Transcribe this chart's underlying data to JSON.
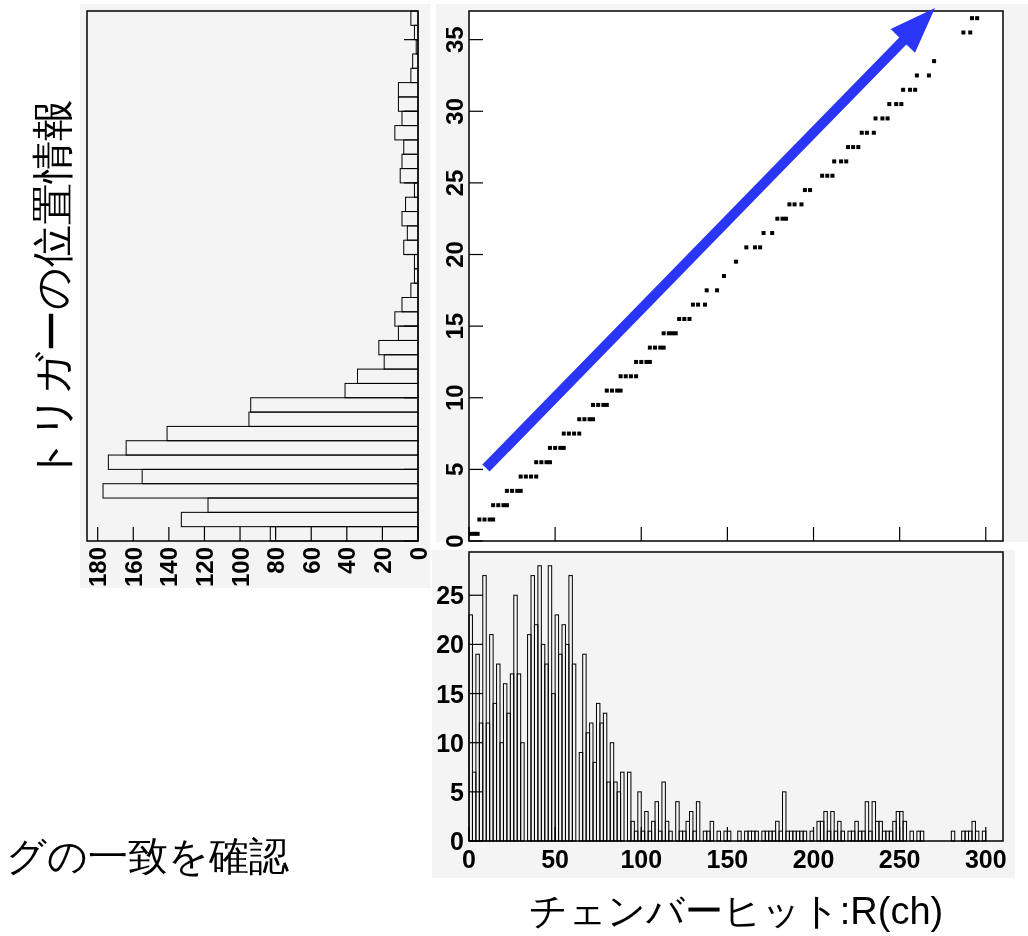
{
  "chart_data": [
    {
      "type": "histogram",
      "orientation": "horizontal",
      "ylabel": "トリガーの位置情報",
      "color": "#000000",
      "bins": [
        0,
        1,
        2,
        3,
        4,
        5,
        6,
        7,
        8,
        9,
        10,
        11,
        12,
        13,
        14,
        15,
        16,
        17,
        18,
        19,
        20,
        21,
        22,
        23,
        24,
        25,
        26,
        27,
        28,
        29,
        30,
        31,
        32,
        33,
        34,
        35,
        36,
        37
      ],
      "values": [
        83,
        133,
        118,
        177,
        155,
        174,
        164,
        141,
        95,
        94,
        41,
        34,
        19,
        22,
        11,
        13,
        9,
        4,
        2,
        2,
        8,
        6,
        9,
        7,
        2,
        10,
        9,
        8,
        13,
        9,
        11,
        11,
        4,
        3,
        1,
        2,
        4
      ],
      "xlim": [
        186,
        0
      ],
      "xticks": [
        0,
        20,
        40,
        60,
        80,
        100,
        120,
        140,
        160,
        180
      ],
      "ylim": [
        0,
        37
      ],
      "yticks": [
        {
          "value": 0,
          "label": null
        },
        {
          "value": 5,
          "label": null
        },
        {
          "value": 10,
          "label": null
        },
        {
          "value": 15,
          "label": null
        },
        {
          "value": 20,
          "label": null
        },
        {
          "value": 25,
          "label": null
        },
        {
          "value": 30,
          "label": null
        },
        {
          "value": 35,
          "label": null
        }
      ],
      "tick_labels": "x"
    },
    {
      "type": "scatter",
      "marker": "square",
      "color": "#000000",
      "x": [
        1,
        3,
        5,
        6,
        9,
        12,
        14,
        14,
        17,
        20,
        22,
        22,
        25,
        28,
        30,
        30,
        33,
        36,
        39,
        39,
        42,
        45,
        47,
        47,
        50,
        53,
        55,
        55,
        58,
        61,
        64,
        64,
        67,
        70,
        72,
        72,
        75,
        78,
        80,
        80,
        83,
        86,
        88,
        88,
        91,
        94,
        97,
        97,
        100,
        103,
        105,
        105,
        108,
        111,
        113,
        113,
        116,
        118,
        120,
        122,
        125,
        128,
        130,
        133,
        137,
        138,
        144,
        148,
        155,
        161,
        166,
        169,
        171,
        176,
        179,
        182,
        184,
        186,
        189,
        193,
        195,
        198,
        205,
        208,
        211,
        212,
        216,
        219,
        220,
        223,
        226,
        228,
        231,
        235,
        236,
        240,
        243,
        244,
        248,
        251,
        252,
        256,
        259,
        260,
        267,
        270,
        287,
        291,
        292,
        295
      ],
      "values": [
        0.5,
        0.5,
        0.5,
        1.5,
        1.5,
        1.5,
        1.5,
        2.5,
        2.5,
        2.5,
        2.5,
        3.5,
        3.5,
        3.5,
        3.5,
        4.5,
        4.5,
        4.5,
        4.5,
        5.5,
        5.5,
        5.5,
        5.5,
        6.5,
        6.5,
        6.5,
        6.5,
        7.5,
        7.5,
        7.5,
        7.5,
        8.5,
        8.5,
        8.5,
        8.5,
        9.5,
        9.5,
        9.5,
        9.5,
        10.5,
        10.5,
        10.5,
        10.5,
        11.5,
        11.5,
        11.5,
        11.5,
        12.5,
        12.5,
        12.5,
        12.5,
        13.5,
        13.5,
        13.5,
        13.5,
        14.5,
        14.5,
        14.5,
        14.5,
        15.5,
        15.5,
        15.5,
        16.5,
        16.5,
        16.5,
        17.5,
        17.5,
        18.5,
        19.5,
        20.5,
        20.5,
        20.5,
        21.5,
        21.5,
        22.5,
        22.5,
        22.5,
        23.5,
        23.5,
        23.5,
        24.5,
        24.5,
        25.5,
        25.5,
        25.5,
        26.5,
        26.5,
        26.5,
        27.5,
        27.5,
        27.5,
        28.5,
        28.5,
        28.5,
        29.5,
        29.5,
        29.5,
        30.5,
        30.5,
        30.5,
        31.5,
        31.5,
        31.5,
        32.5,
        32.5,
        33.5,
        35.5,
        35.5,
        36.5,
        36.5
      ],
      "xlim": [
        0,
        310
      ],
      "xticks": [
        {
          "value": 0,
          "label": null
        },
        {
          "value": 50,
          "label": null
        },
        {
          "value": 100,
          "label": null
        },
        {
          "value": 150,
          "label": null
        },
        {
          "value": 200,
          "label": null
        },
        {
          "value": 250,
          "label": null
        },
        {
          "value": 300,
          "label": null
        }
      ],
      "ylim": [
        0,
        37
      ],
      "yticks": [
        0,
        5,
        10,
        15,
        20,
        25,
        30,
        35
      ],
      "tick_labels": "y"
    },
    {
      "type": "histogram",
      "xlabel": "チェンバーヒット:R(ch)",
      "annotations": [
        "グの一致を確認"
      ],
      "color": "#000000",
      "bins": [
        0,
        2,
        4,
        6,
        8,
        10,
        12,
        14,
        16,
        18,
        20,
        22,
        24,
        26,
        28,
        30,
        32,
        34,
        36,
        38,
        40,
        42,
        44,
        46,
        48,
        50,
        52,
        54,
        56,
        58,
        60,
        62,
        64,
        66,
        68,
        70,
        72,
        74,
        76,
        78,
        80,
        82,
        84,
        86,
        88,
        90,
        92,
        94,
        96,
        98,
        100,
        102,
        104,
        106,
        108,
        110,
        112,
        114,
        116,
        118,
        120,
        122,
        124,
        126,
        128,
        130,
        132,
        134,
        136,
        138,
        140,
        142,
        144,
        146,
        148,
        150,
        152,
        154,
        156,
        158,
        160,
        162,
        164,
        166,
        168,
        170,
        172,
        174,
        176,
        178,
        180,
        182,
        184,
        186,
        188,
        190,
        192,
        194,
        196,
        198,
        200,
        202,
        204,
        206,
        208,
        210,
        212,
        214,
        216,
        218,
        220,
        222,
        224,
        226,
        228,
        230,
        232,
        234,
        236,
        238,
        240,
        242,
        244,
        246,
        248,
        250,
        252,
        254,
        256,
        258,
        260,
        262,
        264,
        266,
        268,
        270,
        272,
        274,
        276,
        278,
        280,
        282,
        284,
        286,
        288,
        290,
        292,
        294,
        296,
        298,
        300,
        302,
        304,
        306,
        308,
        310
      ],
      "values": [
        23,
        7,
        19,
        12,
        27,
        12,
        21,
        14,
        18,
        10,
        16,
        13,
        17,
        25,
        17,
        10,
        0,
        21,
        27,
        22,
        28,
        20,
        18,
        28,
        15,
        23,
        19,
        22,
        20,
        27,
        18,
        0,
        9,
        19,
        11,
        12,
        8,
        14,
        12,
        13,
        6,
        10,
        6,
        5,
        7,
        0,
        7,
        2,
        1,
        5,
        1,
        3,
        1,
        2,
        4,
        1,
        6,
        2,
        1,
        0,
        4,
        1,
        1,
        2,
        3,
        1,
        4,
        0,
        1,
        1,
        2,
        0,
        1,
        0,
        1,
        1,
        0,
        0,
        1,
        0,
        1,
        1,
        1,
        1,
        0,
        1,
        1,
        1,
        1,
        2,
        1,
        5,
        1,
        1,
        1,
        1,
        1,
        1,
        0,
        1,
        0,
        2,
        2,
        3,
        1,
        3,
        1,
        2,
        1,
        0,
        1,
        1,
        2,
        1,
        1,
        4,
        1,
        4,
        2,
        2,
        1,
        1,
        1,
        2,
        3,
        3,
        2,
        0,
        1,
        0,
        1,
        1,
        0,
        0,
        0,
        0,
        0,
        0,
        0,
        0,
        1,
        0,
        0,
        1,
        1,
        1,
        2,
        1,
        0,
        1,
        0,
        0,
        0,
        0,
        0
      ],
      "xlim": [
        0,
        310
      ],
      "xticks": [
        0,
        50,
        100,
        150,
        200,
        250,
        300
      ],
      "ylim": [
        0,
        29.4
      ],
      "yticks": [
        0,
        5,
        10,
        15,
        20,
        25
      ]
    }
  ]
}
